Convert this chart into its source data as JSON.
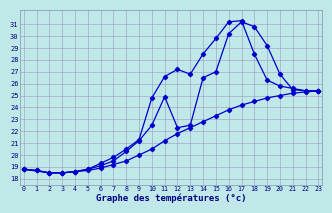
{
  "title": "Graphe des températures (°c)",
  "bg_color": "#c0e8e8",
  "grid_color": "#9999bb",
  "line_color": "#0000cc",
  "ylim": [
    17.5,
    32.2
  ],
  "xlim": [
    -0.3,
    23.3
  ],
  "yticks": [
    18,
    19,
    20,
    21,
    22,
    23,
    24,
    25,
    26,
    27,
    28,
    29,
    30,
    31
  ],
  "xticks": [
    0,
    1,
    2,
    3,
    4,
    5,
    6,
    7,
    8,
    9,
    10,
    11,
    12,
    13,
    14,
    15,
    16,
    17,
    18,
    19,
    20,
    21,
    22,
    23
  ],
  "line1": {
    "x": [
      0,
      1,
      2,
      3,
      4,
      5,
      6,
      7,
      8,
      9,
      10,
      11,
      12,
      13,
      14,
      15,
      16,
      17,
      18,
      19,
      20,
      21,
      22,
      23
    ],
    "y": [
      18.8,
      18.7,
      18.5,
      18.5,
      18.6,
      18.7,
      18.9,
      19.2,
      19.5,
      20.0,
      20.5,
      21.2,
      21.8,
      22.3,
      22.8,
      23.3,
      23.8,
      24.2,
      24.5,
      24.8,
      25.0,
      25.2,
      25.3,
      25.4
    ]
  },
  "line2": {
    "x": [
      0,
      1,
      2,
      3,
      4,
      5,
      6,
      7,
      8,
      9,
      10,
      11,
      12,
      13,
      14,
      15,
      16,
      17,
      18,
      19,
      20,
      21,
      22,
      23
    ],
    "y": [
      18.8,
      18.7,
      18.5,
      18.5,
      18.6,
      18.8,
      19.1,
      19.5,
      20.3,
      21.2,
      22.5,
      24.9,
      22.3,
      22.5,
      26.5,
      27.0,
      30.2,
      31.2,
      30.8,
      29.2,
      26.8,
      25.5,
      25.4,
      25.4
    ]
  },
  "line3": {
    "x": [
      0,
      2,
      3,
      4,
      5,
      6,
      7,
      8,
      9,
      10,
      11,
      12,
      13,
      14,
      15,
      16,
      17,
      18,
      19,
      20,
      21,
      22,
      23
    ],
    "y": [
      18.8,
      18.5,
      18.5,
      18.6,
      18.8,
      19.3,
      19.8,
      20.5,
      21.3,
      24.8,
      26.6,
      27.2,
      26.8,
      28.5,
      29.8,
      31.2,
      31.3,
      28.5,
      26.3,
      25.8,
      25.6,
      25.4,
      25.4
    ]
  }
}
